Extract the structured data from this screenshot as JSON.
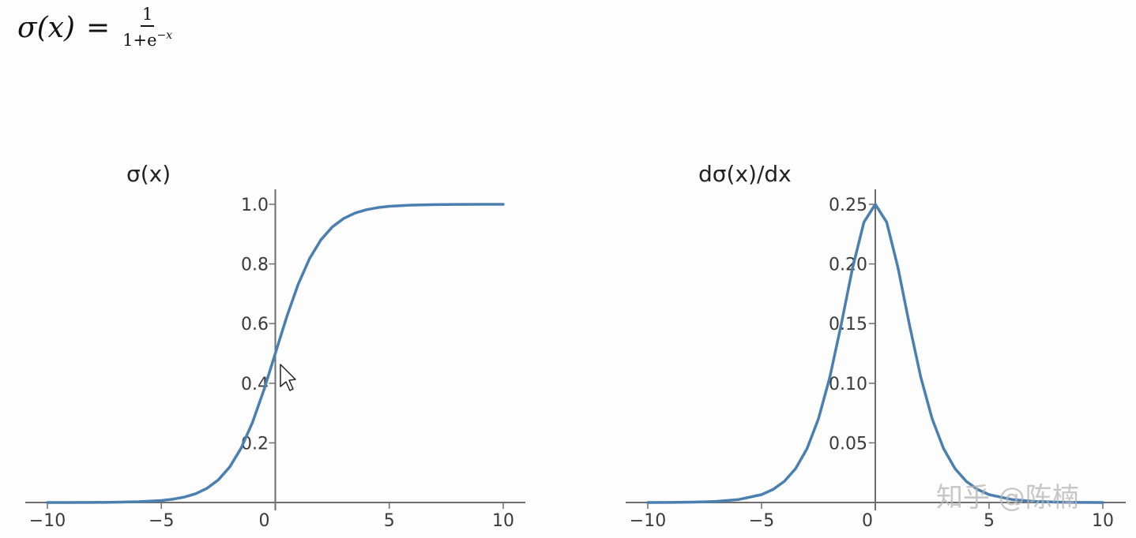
{
  "formula": {
    "lhs": "σ(x)",
    "eq": "=",
    "numerator": "1",
    "denominator_base": "1+e",
    "denominator_exponent": "−x"
  },
  "watermark": "知乎 @陈楠",
  "chart_data": [
    {
      "type": "line",
      "title": "σ(x)",
      "xlabel": "",
      "ylabel": "",
      "xlim": [
        -10,
        10
      ],
      "ylim": [
        0,
        1.0
      ],
      "xticks": [
        -10,
        -5,
        0,
        5,
        10
      ],
      "xtick_labels": [
        "−10",
        "−5",
        "0",
        "5",
        "10"
      ],
      "yticks": [
        0.2,
        0.4,
        0.6,
        0.8,
        1.0
      ],
      "ytick_labels": [
        "0.2",
        "0.4",
        "0.6",
        "0.8",
        "1.0"
      ],
      "grid": false,
      "line_color": "#4a7fb0",
      "series": [
        {
          "x": [
            -10,
            -9,
            -8,
            -7,
            -6,
            -5,
            -4.5,
            -4,
            -3.5,
            -3,
            -2.5,
            -2,
            -1.5,
            -1,
            -0.5,
            0,
            0.5,
            1,
            1.5,
            2,
            2.5,
            3,
            3.5,
            4,
            4.5,
            5,
            6,
            7,
            8,
            9,
            10
          ],
          "values": [
            0.0,
            0.0001,
            0.0003,
            0.0009,
            0.0025,
            0.0067,
            0.011,
            0.018,
            0.0293,
            0.0474,
            0.0759,
            0.1192,
            0.1824,
            0.2689,
            0.3775,
            0.5,
            0.6225,
            0.7311,
            0.8176,
            0.8808,
            0.9241,
            0.9526,
            0.9707,
            0.982,
            0.989,
            0.9933,
            0.9975,
            0.9991,
            0.9997,
            0.9999,
            1.0
          ]
        }
      ]
    },
    {
      "type": "line",
      "title": "dσ(x)/dx",
      "xlabel": "",
      "ylabel": "",
      "xlim": [
        -10,
        10
      ],
      "ylim": [
        0,
        0.25
      ],
      "xticks": [
        -10,
        -5,
        0,
        5,
        10
      ],
      "xtick_labels": [
        "−10",
        "−5",
        "0",
        "5",
        "10"
      ],
      "yticks": [
        0.05,
        0.1,
        0.15,
        0.2,
        0.25
      ],
      "ytick_labels": [
        "0.05",
        "0.10",
        "0.15",
        "0.20",
        "0.25"
      ],
      "grid": false,
      "line_color": "#4a7fb0",
      "series": [
        {
          "x": [
            -10,
            -9,
            -8,
            -7,
            -6,
            -5,
            -4.5,
            -4,
            -3.5,
            -3,
            -2.5,
            -2,
            -1.5,
            -1,
            -0.5,
            0,
            0.5,
            1,
            1.5,
            2,
            2.5,
            3,
            3.5,
            4,
            4.5,
            5,
            6,
            7,
            8,
            9,
            10
          ],
          "values": [
            0.0,
            0.0001,
            0.0003,
            0.0009,
            0.0025,
            0.0066,
            0.0109,
            0.0177,
            0.0285,
            0.0452,
            0.0701,
            0.105,
            0.1491,
            0.1966,
            0.235,
            0.25,
            0.235,
            0.1966,
            0.1491,
            0.105,
            0.0701,
            0.0452,
            0.0285,
            0.0177,
            0.0109,
            0.0066,
            0.0025,
            0.0009,
            0.0003,
            0.0001,
            0.0
          ]
        }
      ]
    }
  ]
}
